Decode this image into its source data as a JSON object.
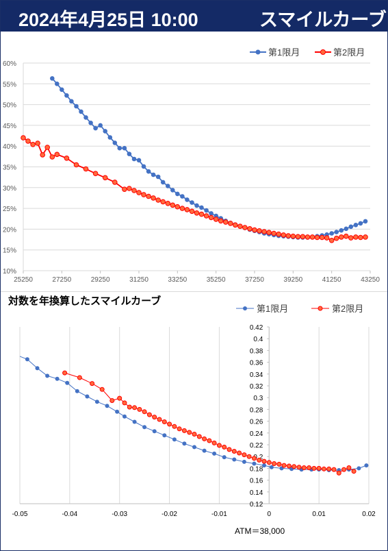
{
  "header": {
    "date_time": "2024年4月25日 10:00",
    "title": "スマイルカーブ"
  },
  "colors": {
    "header_bg": "#142a66",
    "series1": "#4472c4",
    "series2": "#ff0000",
    "series2_marker": "#ff6a3d"
  },
  "chart_data": [
    {
      "type": "line",
      "title": "",
      "xlabel": "",
      "ylabel": "",
      "xlim": [
        25250,
        43250
      ],
      "ylim": [
        0.1,
        0.6
      ],
      "x_ticks": [
        "25250",
        "27250",
        "29250",
        "31250",
        "33250",
        "35250",
        "37250",
        "39250",
        "41250",
        "43250"
      ],
      "y_ticks": [
        "10%",
        "15%",
        "20%",
        "25%",
        "30%",
        "35%",
        "40%",
        "45%",
        "50%",
        "55%",
        "60%"
      ],
      "grid": "horizontal",
      "legend": "top-right",
      "series": [
        {
          "name": "第1限月",
          "color": "#4472c4",
          "x": [
            26750,
            27000,
            27250,
            27500,
            27750,
            28000,
            28250,
            28500,
            28750,
            29000,
            29250,
            29500,
            29750,
            30000,
            30250,
            30500,
            30750,
            31000,
            31250,
            31500,
            31750,
            32000,
            32250,
            32500,
            32750,
            33000,
            33250,
            33500,
            33750,
            34000,
            34250,
            34500,
            34750,
            35000,
            35250,
            35500,
            35750,
            36000,
            36250,
            36500,
            36750,
            37000,
            37250,
            37500,
            37750,
            38000,
            38250,
            38500,
            38750,
            39000,
            39250,
            39500,
            39750,
            40000,
            40250,
            40500,
            40750,
            41000,
            41250,
            41500,
            41750,
            42000,
            42250,
            42500,
            42750,
            43000
          ],
          "values": [
            0.563,
            0.55,
            0.536,
            0.522,
            0.508,
            0.496,
            0.483,
            0.469,
            0.456,
            0.443,
            0.45,
            0.436,
            0.421,
            0.408,
            0.395,
            0.395,
            0.381,
            0.369,
            0.366,
            0.351,
            0.339,
            0.331,
            0.326,
            0.313,
            0.304,
            0.294,
            0.285,
            0.279,
            0.271,
            0.264,
            0.257,
            0.252,
            0.245,
            0.238,
            0.232,
            0.226,
            0.22,
            0.215,
            0.211,
            0.207,
            0.203,
            0.199,
            0.196,
            0.193,
            0.19,
            0.188,
            0.186,
            0.184,
            0.183,
            0.182,
            0.181,
            0.18,
            0.18,
            0.18,
            0.181,
            0.183,
            0.185,
            0.187,
            0.19,
            0.193,
            0.197,
            0.201,
            0.206,
            0.21,
            0.214,
            0.219
          ]
        },
        {
          "name": "第2限月",
          "color": "#ff0000",
          "x": [
            25250,
            25500,
            25750,
            26000,
            26250,
            26500,
            26750,
            27000,
            27500,
            28000,
            28500,
            29000,
            29500,
            30000,
            30500,
            30750,
            31000,
            31250,
            31500,
            31750,
            32000,
            32250,
            32500,
            32750,
            33000,
            33250,
            33500,
            33750,
            34000,
            34250,
            34500,
            34750,
            35000,
            35250,
            35500,
            35750,
            36000,
            36250,
            36500,
            36750,
            37000,
            37250,
            37500,
            37750,
            38000,
            38250,
            38500,
            38750,
            39000,
            39250,
            39500,
            39750,
            40000,
            40250,
            40500,
            40750,
            41000,
            41250,
            41500,
            41750,
            42000,
            42250,
            42500,
            42750,
            43000
          ],
          "values": [
            0.42,
            0.412,
            0.404,
            0.407,
            0.379,
            0.397,
            0.374,
            0.38,
            0.371,
            0.355,
            0.345,
            0.334,
            0.324,
            0.313,
            0.296,
            0.298,
            0.293,
            0.288,
            0.283,
            0.279,
            0.275,
            0.27,
            0.266,
            0.262,
            0.258,
            0.254,
            0.25,
            0.247,
            0.243,
            0.239,
            0.236,
            0.232,
            0.228,
            0.224,
            0.22,
            0.217,
            0.214,
            0.21,
            0.207,
            0.204,
            0.201,
            0.198,
            0.196,
            0.194,
            0.192,
            0.19,
            0.188,
            0.186,
            0.184,
            0.183,
            0.182,
            0.182,
            0.181,
            0.181,
            0.18,
            0.18,
            0.179,
            0.173,
            0.178,
            0.181,
            0.183,
            0.179,
            0.181,
            0.18,
            0.181
          ]
        }
      ]
    },
    {
      "type": "scatter",
      "title": "対数を年換算したスマイルカーブ",
      "xlabel": "",
      "ylabel": "",
      "annotation": "ATM＝38,000",
      "xlim": [
        -0.05,
        0.02
      ],
      "ylim": [
        0.12,
        0.42
      ],
      "x_ticks": [
        "-0.05",
        "-0.04",
        "-0.03",
        "-0.02",
        "-0.01",
        "0",
        "0.01",
        "0.02"
      ],
      "y_ticks": [
        "0.12",
        "0.14",
        "0.16",
        "0.18",
        "0.2",
        "0.22",
        "0.24",
        "0.26",
        "0.28",
        "0.3",
        "0.32",
        "0.34",
        "0.36",
        "0.38",
        "0.4",
        "0.42"
      ],
      "grid": "vertical",
      "legend": "top-right",
      "series": [
        {
          "name": "第1限月",
          "color": "#4472c4",
          "x": [
            -0.0515,
            -0.0485,
            -0.0465,
            -0.0445,
            -0.0425,
            -0.0405,
            -0.0385,
            -0.0365,
            -0.0345,
            -0.0325,
            -0.0305,
            -0.029,
            -0.027,
            -0.025,
            -0.023,
            -0.021,
            -0.019,
            -0.017,
            -0.015,
            -0.013,
            -0.011,
            -0.009,
            -0.007,
            -0.005,
            -0.003,
            -0.001,
            0.0005,
            0.0025,
            0.0045,
            0.0065,
            0.0085,
            0.01,
            0.012,
            0.014,
            0.016,
            0.018,
            0.0195
          ],
          "values": [
            0.375,
            0.365,
            0.35,
            0.337,
            0.332,
            0.325,
            0.311,
            0.302,
            0.293,
            0.286,
            0.276,
            0.268,
            0.259,
            0.25,
            0.243,
            0.236,
            0.229,
            0.222,
            0.216,
            0.21,
            0.205,
            0.199,
            0.195,
            0.191,
            0.188,
            0.185,
            0.182,
            0.18,
            0.179,
            0.178,
            0.178,
            0.178,
            0.177,
            0.177,
            0.178,
            0.18,
            0.185
          ]
        },
        {
          "name": "第2限月",
          "color": "#ff0000",
          "x": [
            -0.041,
            -0.038,
            -0.0355,
            -0.0335,
            -0.0315,
            -0.03,
            -0.029,
            -0.028,
            -0.027,
            -0.026,
            -0.025,
            -0.024,
            -0.023,
            -0.022,
            -0.021,
            -0.02,
            -0.019,
            -0.018,
            -0.017,
            -0.016,
            -0.015,
            -0.014,
            -0.013,
            -0.012,
            -0.011,
            -0.01,
            -0.009,
            -0.008,
            -0.007,
            -0.006,
            -0.005,
            -0.004,
            -0.003,
            -0.002,
            -0.001,
            0.0,
            0.001,
            0.002,
            0.003,
            0.004,
            0.005,
            0.006,
            0.007,
            0.008,
            0.009,
            0.01,
            0.011,
            0.012,
            0.013,
            0.014,
            0.015,
            0.016,
            0.017
          ],
          "values": [
            0.342,
            0.334,
            0.324,
            0.314,
            0.295,
            0.299,
            0.291,
            0.284,
            0.283,
            0.28,
            0.276,
            0.271,
            0.267,
            0.263,
            0.259,
            0.255,
            0.251,
            0.247,
            0.244,
            0.241,
            0.238,
            0.234,
            0.23,
            0.227,
            0.223,
            0.219,
            0.216,
            0.212,
            0.209,
            0.206,
            0.203,
            0.2,
            0.197,
            0.194,
            0.192,
            0.19,
            0.188,
            0.187,
            0.185,
            0.184,
            0.183,
            0.182,
            0.181,
            0.181,
            0.18,
            0.18,
            0.179,
            0.179,
            0.178,
            0.172,
            0.178,
            0.181,
            0.175
          ]
        }
      ]
    }
  ]
}
